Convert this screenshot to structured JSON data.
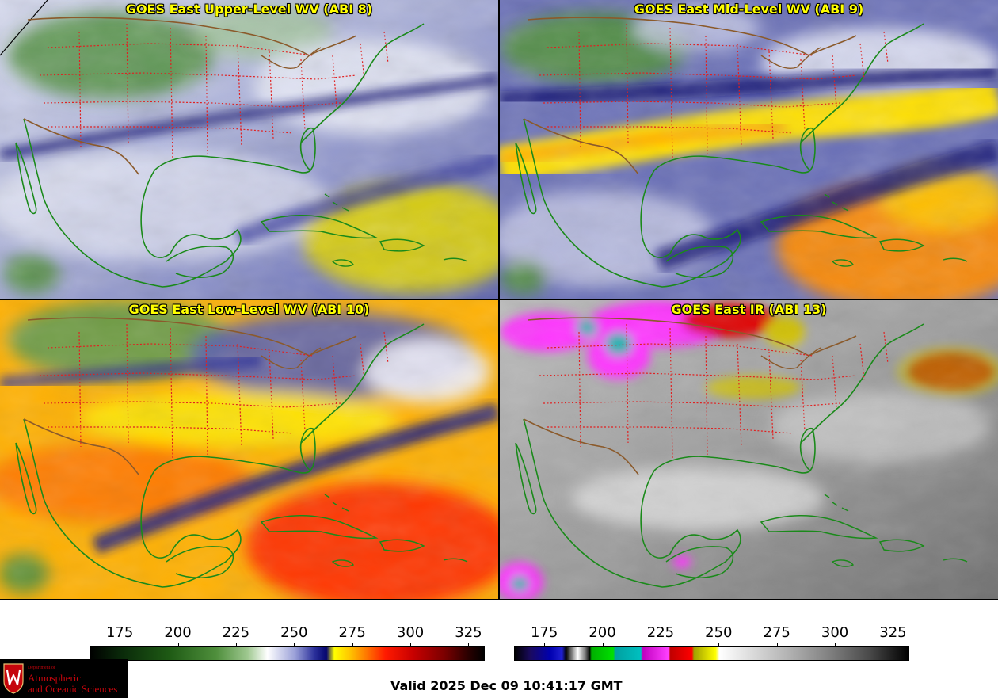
{
  "panels": [
    {
      "title": "GOES East Upper-Level WV (ABI 8)",
      "colormap": "water-vapor"
    },
    {
      "title": "GOES East Mid-Level WV (ABI 9)",
      "colormap": "water-vapor"
    },
    {
      "title": "GOES East Low-Level WV (ABI 10)",
      "colormap": "water-vapor"
    },
    {
      "title": "GOES East IR (ABI 13)",
      "colormap": "infrared"
    }
  ],
  "colorbars": {
    "water_vapor": {
      "ticks": [
        "175",
        "200",
        "225",
        "250",
        "275",
        "300",
        "325"
      ],
      "min": 162,
      "max": 332
    },
    "infrared": {
      "ticks": [
        "175",
        "200",
        "225",
        "250",
        "275",
        "300",
        "325"
      ],
      "min": 162,
      "max": 332
    }
  },
  "colors": {
    "state_borders": "#e02020",
    "country_borders": "#8b5a2b",
    "coastlines": "#1a8a1a",
    "title_text": "#ffff00"
  },
  "logo": {
    "department": "Department of",
    "line1": "Atmospheric",
    "line2": "and Oceanic Sciences"
  },
  "valid_time": "Valid 2025 Dec 09 10:41:17 GMT"
}
